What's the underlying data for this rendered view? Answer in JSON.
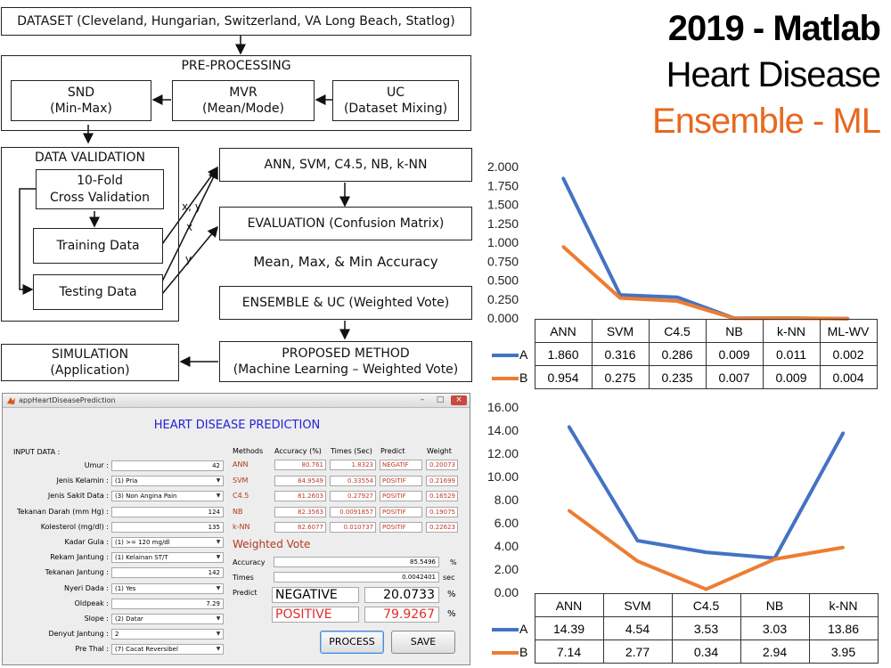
{
  "headline": {
    "line1": "2019 - Matlab",
    "line2": "Heart Disease",
    "line3": "Ensemble - ML",
    "line3_color": "#e86820"
  },
  "diagram": {
    "dataset": "DATASET (Cleveland, Hungarian, Switzerland, VA Long Beach, Statlog)",
    "preprocessing": "PRE-PROCESSING",
    "snd": [
      "SND",
      "(Min-Max)"
    ],
    "mvr": [
      "MVR",
      "(Mean/Mode)"
    ],
    "uc": [
      "UC",
      "(Dataset Mixing)"
    ],
    "data_validation": "DATA VALIDATION",
    "cross_validation": [
      "10-Fold",
      "Cross Validation"
    ],
    "training": "Training Data",
    "testing": "Testing Data",
    "algorithms": "ANN, SVM, C4.5, NB, k-NN",
    "evaluation": "EVALUATION (Confusion Matrix)",
    "accuracy_note": "Mean, Max, & Min Accuracy",
    "ensemble": "ENSEMBLE & UC (Weighted Vote)",
    "proposed": [
      "PROPOSED METHOD",
      "(Machine Learning – Weighted Vote)"
    ],
    "simulation": [
      "SIMULATION",
      "(Application)"
    ],
    "edge_labels": {
      "xy": "x, y",
      "x": "x",
      "y": "y"
    }
  },
  "chart_data": [
    {
      "type": "line",
      "categories": [
        "ANN",
        "SVM",
        "C4.5",
        "NB",
        "k-NN",
        "ML-WV"
      ],
      "series": [
        {
          "name": "A",
          "color": "#4472c4",
          "values": [
            1.86,
            0.316,
            0.286,
            0.009,
            0.011,
            0.002
          ]
        },
        {
          "name": "B",
          "color": "#ed7d31",
          "values": [
            0.954,
            0.275,
            0.235,
            0.007,
            0.009,
            0.004
          ]
        }
      ],
      "table": {
        "A": [
          "1.860",
          "0.316",
          "0.286",
          "0.009",
          "0.011",
          "0.002"
        ],
        "B": [
          "0.954",
          "0.275",
          "0.235",
          "0.007",
          "0.009",
          "0.004"
        ]
      },
      "ylim": [
        0,
        2
      ],
      "yticks": [
        "0.000",
        "0.250",
        "0.500",
        "0.750",
        "1.000",
        "1.250",
        "1.500",
        "1.750",
        "2.000"
      ],
      "grid": false,
      "legend": "data table"
    },
    {
      "type": "line",
      "categories": [
        "ANN",
        "SVM",
        "C4.5",
        "NB",
        "k-NN"
      ],
      "series": [
        {
          "name": "A",
          "color": "#4472c4",
          "values": [
            14.39,
            4.54,
            3.53,
            3.03,
            13.86
          ]
        },
        {
          "name": "B",
          "color": "#ed7d31",
          "values": [
            7.14,
            2.77,
            0.34,
            2.94,
            3.95
          ]
        }
      ],
      "table": {
        "A": [
          "14.39",
          "4.54",
          "3.53",
          "3.03",
          "13.86"
        ],
        "B": [
          "7.14",
          "2.77",
          "0.34",
          "2.94",
          "3.95"
        ]
      },
      "ylim": [
        0,
        16
      ],
      "yticks": [
        "0.00",
        "2.00",
        "4.00",
        "6.00",
        "8.00",
        "10.00",
        "12.00",
        "14.00",
        "16.00"
      ],
      "grid": false,
      "legend": "data table"
    }
  ],
  "app": {
    "window_title": "appHeartDiseasePrediction",
    "title": "HEART DISEASE PREDICTION",
    "input_heading": "INPUT DATA :",
    "fields": [
      {
        "label": "Umur :",
        "value": "42",
        "kind": "edit"
      },
      {
        "label": "Jenis Kelamin :",
        "value": "(1) Pria",
        "kind": "select"
      },
      {
        "label": "Jenis Sakit Data :",
        "value": "(3) Non Angina Pain",
        "kind": "select"
      },
      {
        "label": "Tekanan Darah (mm Hg) :",
        "value": "124",
        "kind": "edit"
      },
      {
        "label": "Kolesterol (mg/dl) :",
        "value": "135",
        "kind": "edit"
      },
      {
        "label": "Kadar Gula :",
        "value": "(1) >= 120 mg/dl",
        "kind": "select"
      },
      {
        "label": "Rekam Jantung :",
        "value": "(1) Kelainan ST/T",
        "kind": "select"
      },
      {
        "label": "Tekanan Jantung :",
        "value": "142",
        "kind": "edit"
      },
      {
        "label": "Nyeri Dada :",
        "value": "(1) Yes",
        "kind": "select"
      },
      {
        "label": "Oldpeak :",
        "value": "7.29",
        "kind": "edit"
      },
      {
        "label": "Slope :",
        "value": "(2) Datar",
        "kind": "select"
      },
      {
        "label": "Denyut Jantung :",
        "value": "2",
        "kind": "select"
      },
      {
        "label": "Pre Thal :",
        "value": "(7) Cacat Reversibel",
        "kind": "select"
      }
    ],
    "results_headers": [
      "Methods",
      "Accuracy (%)",
      "Times (Sec)",
      "Predict",
      "Weight"
    ],
    "results": [
      {
        "method": "ANN",
        "accuracy": "80.761",
        "time": "1.8323",
        "predict": "NEGATIF",
        "weight": "0.20073"
      },
      {
        "method": "SVM",
        "accuracy": "84.9549",
        "time": "0.33554",
        "predict": "POSITIF",
        "weight": "0.21699"
      },
      {
        "method": "C4.5",
        "accuracy": "81.2603",
        "time": "0.27927",
        "predict": "POSITIF",
        "weight": "0.16529"
      },
      {
        "method": "NB",
        "accuracy": "82.3563",
        "time": "0.0091857",
        "predict": "POSITIF",
        "weight": "0.19075"
      },
      {
        "method": "k-NN",
        "accuracy": "82.6077",
        "time": "0.010737",
        "predict": "POSITIF",
        "weight": "0.22623"
      }
    ],
    "weighted_vote": {
      "heading": "Weighted Vote",
      "accuracy_label": "Accuracy",
      "accuracy": "85.5496",
      "accuracy_unit": "%",
      "times_label": "Times",
      "times": "0.0042401",
      "times_unit": "sec",
      "predict_label": "Predict",
      "negative_label": "NEGATIVE",
      "negative_value": "20.0733",
      "negative_unit": "%",
      "positive_label": "POSITIVE",
      "positive_value": "79.9267",
      "positive_unit": "%"
    },
    "buttons": {
      "process": "PROCESS",
      "save": "SAVE"
    }
  }
}
